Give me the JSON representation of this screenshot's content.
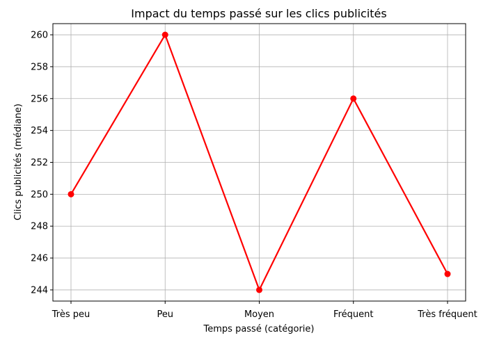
{
  "chart_data": {
    "type": "line",
    "title": "Impact du temps passé sur les clics publicités",
    "xlabel": "Temps passé (catégorie)",
    "ylabel": "Clics publicités (médiane)",
    "categories": [
      "Très peu",
      "Peu",
      "Moyen",
      "Fréquent",
      "Très fréquent"
    ],
    "series": [
      {
        "values": [
          250,
          260,
          244,
          256,
          245
        ],
        "color": "#ff0000",
        "marker": "circle"
      }
    ],
    "ylim": [
      243.3,
      260.7
    ],
    "yticks": [
      244,
      246,
      248,
      250,
      252,
      254,
      256,
      258,
      260
    ],
    "grid": true,
    "legend": "none"
  }
}
